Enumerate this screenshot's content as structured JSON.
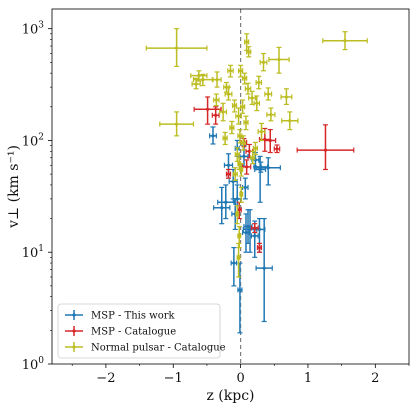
{
  "chart_data": {
    "type": "scatter",
    "xlabel": "z (kpc)",
    "ylabel": "v⊥ (km s⁻¹)",
    "xlim": [
      -2.8,
      2.5
    ],
    "ylim": [
      1,
      1500
    ],
    "y_scale": "log",
    "x_ticks": [
      {
        "value": -2,
        "label": "−2"
      },
      {
        "value": -1,
        "label": "−1"
      },
      {
        "value": 0,
        "label": "0"
      },
      {
        "value": 1,
        "label": "1"
      },
      {
        "value": 2,
        "label": "2"
      }
    ],
    "y_ticks": [
      {
        "value": 1,
        "base": "10",
        "exp": "0"
      },
      {
        "value": 10,
        "base": "10",
        "exp": "1"
      },
      {
        "value": 100,
        "base": "10",
        "exp": "2"
      },
      {
        "value": 1000,
        "base": "10",
        "exp": "3"
      }
    ],
    "reference_line": {
      "x": 0,
      "style": "dashed",
      "color": "#7f7f7f"
    },
    "grid": false,
    "legend_position": "lower-left",
    "series": [
      {
        "name": "MSP - This work",
        "color": "#1f77b4",
        "points": [
          {
            "x": -0.41,
            "y": 110,
            "xerr": 0.05,
            "yerr": [
              93,
              132
            ]
          },
          {
            "x": -0.05,
            "y": 85,
            "xerr": 0.03,
            "yerr": [
              72,
              100
            ]
          },
          {
            "x": -0.18,
            "y": 60,
            "xerr": 0.06,
            "yerr": [
              46,
              76
            ]
          },
          {
            "x": 0.05,
            "y": 72,
            "xerr": 0.06,
            "yerr": [
              58,
              90
            ]
          },
          {
            "x": 0.3,
            "y": 55,
            "xerr": 0.1,
            "yerr": [
              42,
              70
            ]
          },
          {
            "x": 0.3,
            "y": 60,
            "xerr": 0.12,
            "yerr": [
              48,
              74
            ]
          },
          {
            "x": 0.3,
            "y": 48,
            "xerr": 0.08,
            "yerr": [
              38,
              60
            ]
          },
          {
            "x": 0.3,
            "y": 62,
            "xerr": 0.1,
            "yerr": [
              55,
              70
            ]
          },
          {
            "x": 0.3,
            "y": 65,
            "xerr": 0.08,
            "yerr": [
              60,
              72
            ]
          },
          {
            "x": 0.3,
            "y": 68,
            "xerr": 0.06,
            "yerr": [
              62,
              75
            ]
          },
          {
            "x": 0.3,
            "y": 52,
            "xerr": 0.06,
            "yerr": [
              45,
              60
            ]
          },
          {
            "x": 0.3,
            "y": 58,
            "xerr": 0.05,
            "yerr": [
              52,
              66
            ]
          },
          {
            "x": 0.3,
            "y": 64,
            "xerr": 0.05,
            "yerr": [
              58,
              70
            ]
          },
          {
            "x": 0.3,
            "y": 56,
            "xerr": 0.05,
            "yerr": [
              50,
              62
            ]
          },
          {
            "x": 0.3,
            "y": 60,
            "xerr": 0.05,
            "yerr": [
              54,
              66
            ]
          },
          {
            "x": 0.3,
            "y": 62,
            "xerr": 0.05,
            "yerr": [
              56,
              68
            ]
          },
          {
            "x": 0.3,
            "y": 57,
            "xerr": 0.05,
            "yerr": [
              51,
              63
            ]
          },
          {
            "x": 0.3,
            "y": 59,
            "xerr": 0.05,
            "yerr": [
              53,
              65
            ]
          },
          {
            "x": 0.3,
            "y": 61,
            "xerr": 0.05,
            "yerr": [
              55,
              67
            ]
          },
          {
            "x": 0.3,
            "y": 63,
            "xerr": 0.05,
            "yerr": [
              57,
              69
            ]
          },
          {
            "x": 0.3,
            "y": 58,
            "xerr": 0.05,
            "yerr": [
              52,
              64
            ]
          },
          {
            "x": 0.3,
            "y": 60,
            "xerr": 0.05,
            "yerr": [
              54,
              66
            ]
          },
          {
            "x": 0.3,
            "y": 62,
            "xerr": 0.05,
            "yerr": [
              56,
              68
            ]
          },
          {
            "x": 0.3,
            "y": 56,
            "xerr": 0.05,
            "yerr": [
              50,
              62
            ]
          },
          {
            "x": 0.3,
            "y": 59,
            "xerr": 0.05,
            "yerr": [
              53,
              65
            ]
          },
          {
            "x": 0.3,
            "y": 61,
            "xerr": 0.05,
            "yerr": [
              55,
              67
            ]
          },
          {
            "x": 0.3,
            "y": 64,
            "xerr": 0.05,
            "yerr": [
              58,
              70
            ]
          },
          {
            "x": 0.3,
            "y": 57,
            "xerr": 0.05,
            "yerr": [
              51,
              63
            ]
          },
          {
            "x": 0.3,
            "y": 60,
            "xerr": 0.05,
            "yerr": [
              54,
              66
            ]
          },
          {
            "x": 0.3,
            "y": 62,
            "xerr": 0.05,
            "yerr": [
              56,
              68
            ]
          },
          {
            "x": 0.3,
            "y": 58,
            "xerr": 0.05,
            "yerr": [
              52,
              64
            ]
          },
          {
            "x": 0.3,
            "y": 61,
            "xerr": 0.05,
            "yerr": [
              55,
              67
            ]
          }
        ]
      }
    ]
  }
}
